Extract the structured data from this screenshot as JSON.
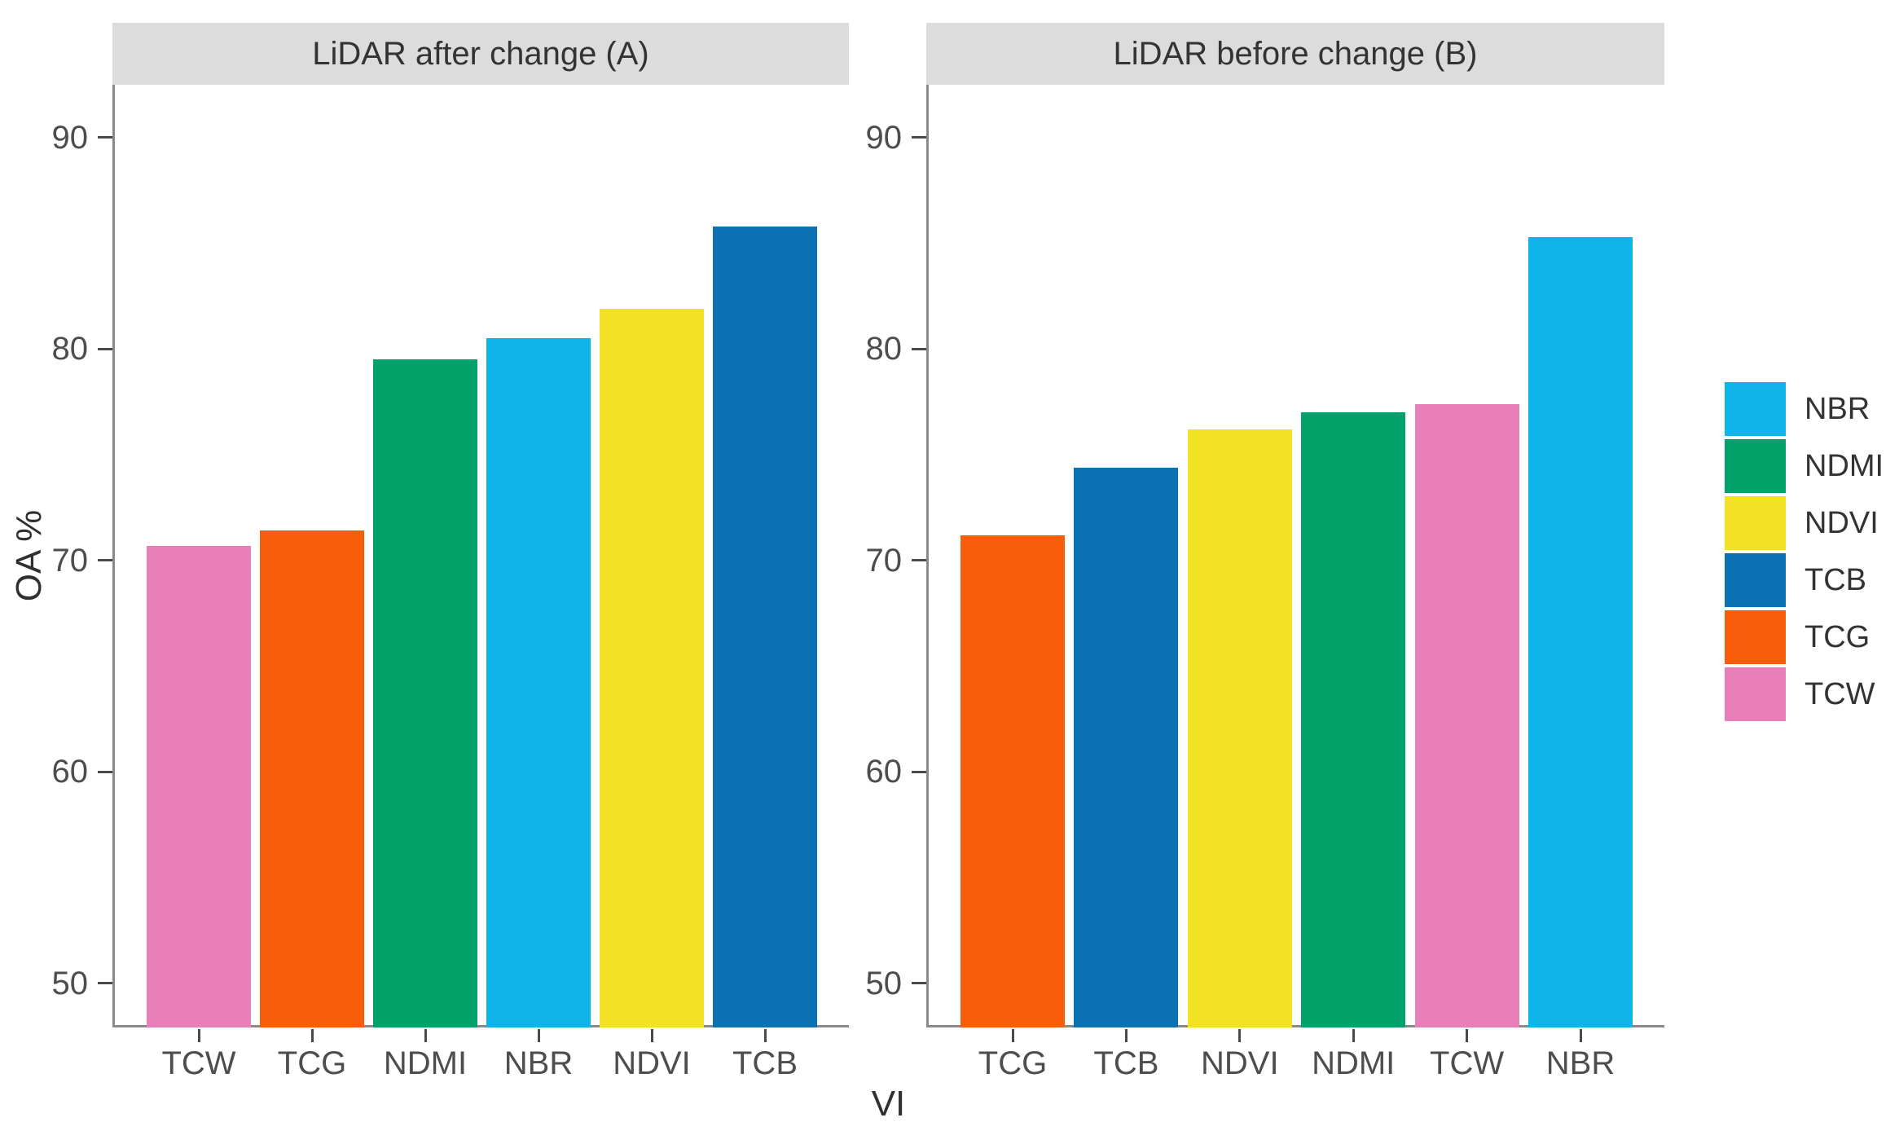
{
  "figure": {
    "ylabel": "OA %",
    "xlabel": "VI",
    "y_ticks": [
      50,
      60,
      70,
      80,
      90
    ],
    "y_range": [
      47.9,
      92.5
    ],
    "strip_bg": "#dcdcdc",
    "axis_line_color": "#8a8a8a",
    "colors": {
      "NBR": "#0fb5ea",
      "NDMI": "#02a169",
      "NDVI": "#f3e224",
      "TCB": "#0a71b2",
      "TCG": "#f85e0a",
      "TCW": "#e97fb8"
    },
    "legend_items": [
      "NBR",
      "NDMI",
      "NDVI",
      "TCB",
      "TCG",
      "TCW"
    ]
  },
  "chart_data": [
    {
      "type": "bar",
      "title": "LiDAR after change (A)",
      "categories": [
        "TCW",
        "TCG",
        "NDMI",
        "NBR",
        "NDVI",
        "TCB"
      ],
      "values": [
        70.7,
        71.4,
        79.5,
        80.5,
        81.9,
        85.8
      ],
      "xlabel": "VI",
      "ylabel": "OA %",
      "ylim": [
        47.9,
        92.5
      ],
      "yticks": [
        50,
        60,
        70,
        80,
        90
      ],
      "grid": false,
      "legend_position": "right"
    },
    {
      "type": "bar",
      "title": "LiDAR before change (B)",
      "categories": [
        "TCG",
        "TCB",
        "NDVI",
        "NDMI",
        "TCW",
        "NBR"
      ],
      "values": [
        71.2,
        74.4,
        76.2,
        77.0,
        77.4,
        85.3
      ],
      "xlabel": "VI",
      "ylabel": "OA %",
      "ylim": [
        47.9,
        92.5
      ],
      "yticks": [
        50,
        60,
        70,
        80,
        90
      ],
      "grid": false,
      "legend_position": "right"
    }
  ]
}
